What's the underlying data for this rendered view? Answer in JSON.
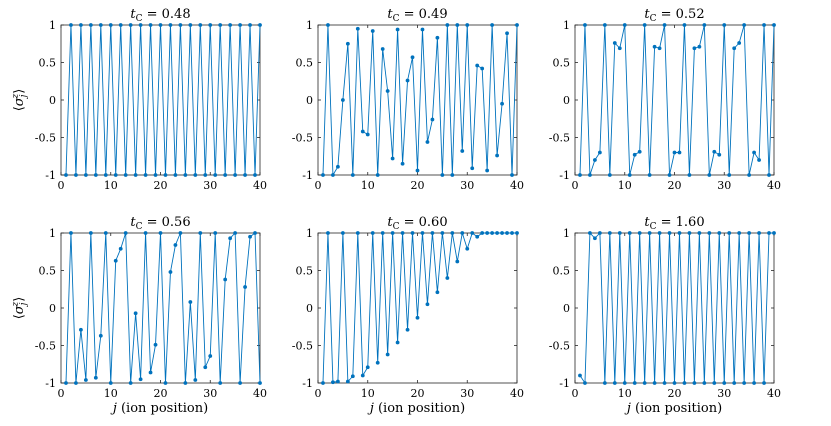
{
  "figure": {
    "xlabel": "j (ion position)",
    "ylabel": "⟨σ_j^z⟩",
    "series_color": "#0072BD"
  },
  "chart_data": [
    {
      "type": "line",
      "title": "t_C = 0.48",
      "xlim": [
        0,
        40
      ],
      "ylim": [
        -1,
        1
      ],
      "xticks": [
        0,
        10,
        20,
        30,
        40
      ],
      "yticks": [
        1,
        0.5,
        0,
        -0.5,
        -1
      ],
      "yticklabels": [
        "1",
        "0.5",
        "0",
        "-0.5",
        "-1"
      ],
      "show_xlabel": false,
      "show_ylabel": true,
      "x": [
        1,
        2,
        3,
        4,
        5,
        6,
        7,
        8,
        9,
        10,
        11,
        12,
        13,
        14,
        15,
        16,
        17,
        18,
        19,
        20,
        21,
        22,
        23,
        24,
        25,
        26,
        27,
        28,
        29,
        30,
        31,
        32,
        33,
        34,
        35,
        36,
        37,
        38,
        39,
        40
      ],
      "y": [
        -1,
        1,
        -1,
        1,
        -1,
        1,
        -1,
        1,
        -1,
        1,
        -1,
        1,
        -1,
        1,
        -1,
        1,
        -1,
        1,
        -1,
        1,
        -1,
        1,
        -1,
        1,
        -1,
        1,
        -1,
        1,
        -1,
        1,
        -1,
        1,
        -1,
        1,
        -1,
        1,
        -1,
        1,
        -1,
        1
      ]
    },
    {
      "type": "line",
      "title": "t_C = 0.49",
      "xlim": [
        0,
        40
      ],
      "ylim": [
        -1,
        1
      ],
      "xticks": [
        0,
        10,
        20,
        30,
        40
      ],
      "yticks": [
        1,
        0.5,
        0,
        -0.5,
        -1
      ],
      "yticklabels": [
        "1",
        "0.5",
        "0",
        "-0.5",
        "-1"
      ],
      "show_xlabel": false,
      "show_ylabel": false,
      "x": [
        1,
        2,
        3,
        4,
        5,
        6,
        7,
        8,
        9,
        10,
        11,
        12,
        13,
        14,
        15,
        16,
        17,
        18,
        19,
        20,
        21,
        22,
        23,
        24,
        25,
        26,
        27,
        28,
        29,
        30,
        31,
        32,
        33,
        34,
        35,
        36,
        37,
        38,
        39,
        40
      ],
      "y": [
        -1,
        1,
        -1,
        -0.89,
        0,
        0.75,
        -1,
        0.95,
        -0.42,
        -0.46,
        0.92,
        -1,
        0.68,
        0.12,
        -0.78,
        0.94,
        -0.85,
        0.26,
        0.57,
        -0.94,
        0.94,
        -0.56,
        -0.26,
        0.83,
        -1,
        1,
        -1,
        1,
        -0.68,
        1,
        -0.91,
        0.46,
        0.42,
        -0.94,
        1,
        -0.74,
        -0.05,
        0.89,
        -1,
        1
      ]
    },
    {
      "type": "line",
      "title": "t_C = 0.52",
      "xlim": [
        0,
        40
      ],
      "ylim": [
        -1,
        1
      ],
      "xticks": [
        0,
        10,
        20,
        30,
        40
      ],
      "yticks": [
        1,
        0.5,
        0,
        -0.5,
        -1
      ],
      "yticklabels": [
        "1",
        "0.5",
        "0",
        "-0.5",
        "-1"
      ],
      "show_xlabel": false,
      "show_ylabel": false,
      "x": [
        1,
        2,
        3,
        4,
        5,
        6,
        7,
        8,
        9,
        10,
        11,
        12,
        13,
        14,
        15,
        16,
        17,
        18,
        19,
        20,
        21,
        22,
        23,
        24,
        25,
        26,
        27,
        28,
        29,
        30,
        31,
        32,
        33,
        34,
        35,
        36,
        37,
        38,
        39,
        40
      ],
      "y": [
        -1,
        1,
        -1,
        -0.8,
        -0.7,
        1,
        -1,
        0.76,
        0.69,
        1,
        -1,
        -0.73,
        -0.69,
        1,
        -1,
        0.71,
        0.69,
        1,
        -1,
        -0.7,
        -0.7,
        1,
        -1,
        0.69,
        0.71,
        1,
        -1,
        -0.69,
        -0.73,
        1,
        -1,
        0.69,
        0.76,
        1,
        -1,
        -0.7,
        -0.8,
        1,
        -1,
        1
      ]
    },
    {
      "type": "line",
      "title": "t_C = 0.56",
      "xlim": [
        0,
        40
      ],
      "ylim": [
        -1,
        1
      ],
      "xticks": [
        0,
        10,
        20,
        30,
        40
      ],
      "yticks": [
        1,
        0.5,
        0,
        -0.5,
        -1
      ],
      "yticklabels": [
        "1",
        "0.5",
        "0",
        "-0.5",
        "-1"
      ],
      "show_xlabel": true,
      "show_ylabel": true,
      "x": [
        1,
        2,
        3,
        4,
        5,
        6,
        7,
        8,
        9,
        10,
        11,
        12,
        13,
        14,
        15,
        16,
        17,
        18,
        19,
        20,
        21,
        22,
        23,
        24,
        25,
        26,
        27,
        28,
        29,
        30,
        31,
        32,
        33,
        34,
        35,
        36,
        37,
        38,
        39,
        40
      ],
      "y": [
        -1,
        1,
        -1,
        -0.29,
        -0.96,
        1,
        -0.93,
        -0.37,
        1,
        -1,
        0.63,
        0.79,
        1,
        -1,
        -0.07,
        -0.95,
        1,
        -0.86,
        -0.49,
        1,
        -1,
        0.48,
        0.84,
        1,
        -1,
        0.08,
        -0.96,
        1,
        -0.79,
        -0.64,
        1,
        -1,
        0.38,
        0.93,
        1,
        -1,
        0.28,
        0.95,
        1,
        -1
      ]
    },
    {
      "type": "line",
      "title": "t_C = 0.60",
      "xlim": [
        0,
        40
      ],
      "ylim": [
        -1,
        1
      ],
      "xticks": [
        0,
        10,
        20,
        30,
        40
      ],
      "yticks": [
        1,
        0.5,
        0,
        -0.5,
        -1
      ],
      "yticklabels": [
        "1",
        "0.5",
        "0",
        "-0.5",
        "-1"
      ],
      "show_xlabel": true,
      "show_ylabel": false,
      "x": [
        1,
        2,
        3,
        4,
        5,
        6,
        7,
        8,
        9,
        10,
        11,
        12,
        13,
        14,
        15,
        16,
        17,
        18,
        19,
        20,
        21,
        22,
        23,
        24,
        25,
        26,
        27,
        28,
        29,
        30,
        31,
        32,
        33,
        34,
        35,
        36,
        37,
        38,
        39,
        40
      ],
      "y": [
        -1,
        1,
        -0.99,
        -0.98,
        1,
        -0.98,
        -0.91,
        1,
        -0.9,
        -0.79,
        1,
        -0.73,
        1,
        -0.62,
        1,
        -0.46,
        1,
        -0.29,
        1,
        -0.13,
        1,
        0.05,
        1,
        0.21,
        1,
        0.4,
        1,
        0.62,
        1,
        0.79,
        1,
        0.95,
        1,
        1,
        1,
        1,
        1,
        1,
        1,
        1
      ]
    },
    {
      "type": "line",
      "title": "t_C = 1.60",
      "xlim": [
        0,
        40
      ],
      "ylim": [
        -1,
        1
      ],
      "xticks": [
        0,
        10,
        20,
        30,
        40
      ],
      "yticks": [
        1,
        0.5,
        0,
        -0.5,
        -1
      ],
      "yticklabels": [
        "1",
        "0.5",
        "0",
        "-0.5",
        "-1"
      ],
      "show_xlabel": true,
      "show_ylabel": false,
      "x": [
        1,
        2,
        3,
        4,
        5,
        6,
        7,
        8,
        9,
        10,
        11,
        12,
        13,
        14,
        15,
        16,
        17,
        18,
        19,
        20,
        21,
        22,
        23,
        24,
        25,
        26,
        27,
        28,
        29,
        30,
        31,
        32,
        33,
        34,
        35,
        36,
        37,
        38,
        39,
        40
      ],
      "y": [
        -0.9,
        -1,
        1,
        0.93,
        1,
        -1,
        1,
        -1,
        1,
        -1,
        1,
        -1,
        1,
        -1,
        1,
        -1,
        1,
        -1,
        1,
        -1,
        1,
        -1,
        1,
        -1,
        1,
        -1,
        1,
        -1,
        1,
        -1,
        1,
        -1,
        1,
        -1,
        1,
        -1,
        1,
        -1,
        1,
        1
      ]
    }
  ]
}
